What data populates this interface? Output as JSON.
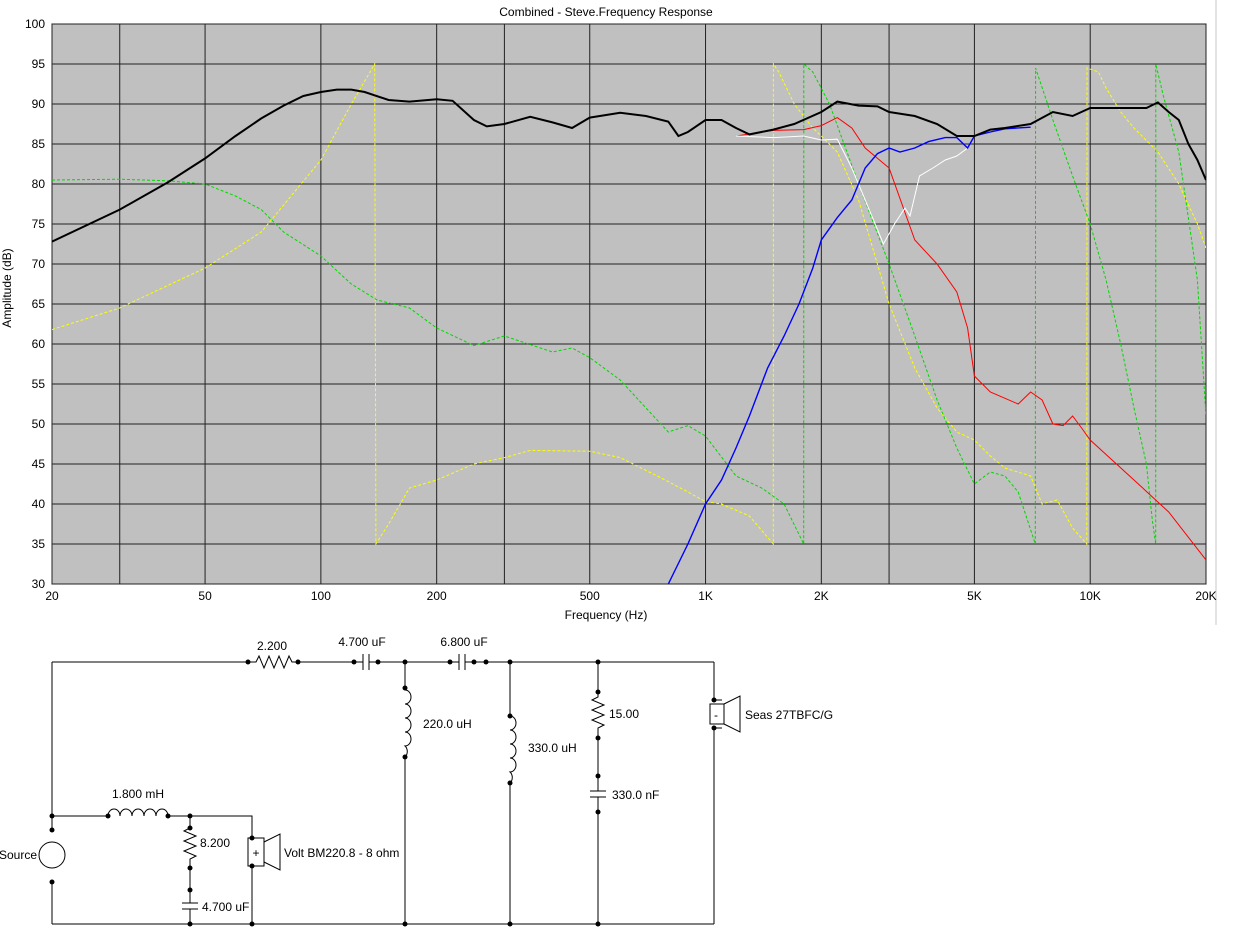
{
  "chart_data": {
    "type": "line",
    "title": "Combined - Steve.Frequency Response",
    "xlabel": "Frequency (Hz)",
    "ylabel": "Amplitude (dB)",
    "x_scale": "log",
    "xlim": [
      20,
      20000
    ],
    "ylim": [
      30,
      100
    ],
    "grid": true,
    "x_ticks": [
      {
        "v": 20,
        "label": "20"
      },
      {
        "v": 50,
        "label": "50"
      },
      {
        "v": 100,
        "label": "100"
      },
      {
        "v": 200,
        "label": "200"
      },
      {
        "v": 500,
        "label": "500"
      },
      {
        "v": 1000,
        "label": "1K"
      },
      {
        "v": 2000,
        "label": "2K"
      },
      {
        "v": 5000,
        "label": "5K"
      },
      {
        "v": 10000,
        "label": "10K"
      },
      {
        "v": 20000,
        "label": "20K"
      }
    ],
    "x_grid": [
      20,
      30,
      50,
      100,
      200,
      300,
      500,
      1000,
      2000,
      3000,
      5000,
      10000,
      20000
    ],
    "y_ticks": [
      {
        "v": 30,
        "label": "30"
      },
      {
        "v": 35,
        "label": "35"
      },
      {
        "v": 40,
        "label": "40"
      },
      {
        "v": 45,
        "label": "45"
      },
      {
        "v": 50,
        "label": "50"
      },
      {
        "v": 55,
        "label": "55"
      },
      {
        "v": 60,
        "label": "60"
      },
      {
        "v": 65,
        "label": "65"
      },
      {
        "v": 70,
        "label": "70"
      },
      {
        "v": 75,
        "label": "75"
      },
      {
        "v": 80,
        "label": "80"
      },
      {
        "v": 85,
        "label": "85"
      },
      {
        "v": 90,
        "label": "90"
      },
      {
        "v": 95,
        "label": "95"
      },
      {
        "v": 100,
        "label": "100"
      }
    ],
    "series": [
      {
        "color": "#ffff00",
        "style": "dashed",
        "width": 1,
        "points": [
          [
            20,
            61.8
          ],
          [
            30,
            64.5
          ],
          [
            50,
            69.5
          ],
          [
            70,
            74
          ],
          [
            100,
            83
          ],
          [
            120,
            90
          ],
          [
            138,
            95
          ],
          [
            139,
            35
          ],
          [
            150,
            37.5
          ],
          [
            170,
            42
          ],
          [
            200,
            43
          ],
          [
            250,
            45
          ],
          [
            300,
            45.8
          ],
          [
            350,
            46.7
          ],
          [
            500,
            46.6
          ],
          [
            600,
            45.8
          ],
          [
            700,
            44.2
          ],
          [
            800,
            42.8
          ],
          [
            900,
            41.5
          ],
          [
            1000,
            40.3
          ],
          [
            1100,
            40
          ],
          [
            1300,
            38.5
          ],
          [
            1500,
            35
          ],
          [
            1501,
            95
          ],
          [
            1550,
            94
          ],
          [
            1700,
            90
          ],
          [
            1900,
            87
          ],
          [
            2000,
            86
          ],
          [
            2200,
            84
          ],
          [
            2500,
            78
          ],
          [
            3000,
            65
          ],
          [
            3500,
            57
          ],
          [
            4000,
            52
          ],
          [
            4500,
            49
          ],
          [
            5000,
            48
          ],
          [
            5500,
            46
          ],
          [
            6000,
            44.5
          ],
          [
            7000,
            43.5
          ],
          [
            7500,
            40
          ],
          [
            8200,
            40.5
          ],
          [
            9000,
            37
          ],
          [
            9800,
            35
          ],
          [
            9810,
            94.5
          ],
          [
            10500,
            94
          ],
          [
            11000,
            92
          ],
          [
            12000,
            89
          ],
          [
            13000,
            87
          ],
          [
            15000,
            84
          ],
          [
            17000,
            80
          ],
          [
            19000,
            75
          ],
          [
            20000,
            72
          ]
        ]
      },
      {
        "color": "#00d800",
        "style": "dashed",
        "width": 1,
        "points": [
          [
            20,
            80.5
          ],
          [
            30,
            80.6
          ],
          [
            40,
            80.4
          ],
          [
            50,
            80
          ],
          [
            60,
            78.5
          ],
          [
            70,
            76.8
          ],
          [
            80,
            74
          ],
          [
            100,
            71
          ],
          [
            120,
            67.5
          ],
          [
            140,
            65.5
          ],
          [
            170,
            64.5
          ],
          [
            200,
            62
          ],
          [
            250,
            59.8
          ],
          [
            300,
            61
          ],
          [
            400,
            59
          ],
          [
            450,
            59.5
          ],
          [
            500,
            58.3
          ],
          [
            600,
            55.5
          ],
          [
            700,
            52
          ],
          [
            800,
            49
          ],
          [
            900,
            49.8
          ],
          [
            1000,
            48.5
          ],
          [
            1200,
            43.5
          ],
          [
            1400,
            42
          ],
          [
            1600,
            40
          ],
          [
            1800,
            35
          ],
          [
            1801,
            95
          ],
          [
            1900,
            94
          ],
          [
            2100,
            90
          ],
          [
            2500,
            80
          ],
          [
            3000,
            70
          ],
          [
            3500,
            61
          ],
          [
            4000,
            53
          ],
          [
            4500,
            47
          ],
          [
            5000,
            42.5
          ],
          [
            5500,
            44
          ],
          [
            6000,
            43.5
          ],
          [
            6500,
            41.5
          ],
          [
            7200,
            35
          ],
          [
            7210,
            94.5
          ],
          [
            8000,
            88
          ],
          [
            9000,
            81
          ],
          [
            10000,
            75
          ],
          [
            11000,
            68
          ],
          [
            12000,
            60
          ],
          [
            13000,
            52
          ],
          [
            14000,
            45
          ],
          [
            14500,
            38
          ],
          [
            14800,
            35
          ],
          [
            14810,
            95
          ],
          [
            15500,
            91
          ],
          [
            17000,
            84
          ],
          [
            19000,
            68
          ],
          [
            20000,
            51
          ]
        ]
      },
      {
        "color": "#ff0000",
        "style": "solid",
        "width": 1,
        "points": [
          [
            1200,
            86
          ],
          [
            1500,
            86.7
          ],
          [
            1800,
            86.8
          ],
          [
            2000,
            87.3
          ],
          [
            2200,
            88.3
          ],
          [
            2400,
            87
          ],
          [
            2600,
            84.5
          ],
          [
            3000,
            82
          ],
          [
            3500,
            73
          ],
          [
            4000,
            70
          ],
          [
            4500,
            66.5
          ],
          [
            4800,
            62
          ],
          [
            5000,
            56
          ],
          [
            5500,
            54
          ],
          [
            6500,
            52.5
          ],
          [
            7000,
            54
          ],
          [
            7500,
            53
          ],
          [
            8000,
            50
          ],
          [
            8500,
            49.8
          ],
          [
            9000,
            51
          ],
          [
            9500,
            49.5
          ],
          [
            10000,
            48
          ],
          [
            13000,
            43
          ],
          [
            16000,
            39
          ],
          [
            20000,
            33
          ]
        ]
      },
      {
        "color": "#ffffff",
        "style": "solid",
        "width": 1,
        "points": [
          [
            1200,
            86
          ],
          [
            1500,
            85.8
          ],
          [
            1800,
            86
          ],
          [
            2000,
            85.5
          ],
          [
            2200,
            85.6
          ],
          [
            2400,
            82
          ],
          [
            2600,
            78
          ],
          [
            2900,
            72.5
          ],
          [
            3100,
            75
          ],
          [
            3300,
            77
          ],
          [
            3400,
            76
          ],
          [
            3600,
            81
          ],
          [
            3900,
            82
          ],
          [
            4200,
            83
          ],
          [
            4500,
            83.5
          ],
          [
            4800,
            84.5
          ],
          [
            5000,
            86
          ]
        ]
      },
      {
        "color": "#0000ff",
        "style": "solid",
        "width": 1.4,
        "points": [
          [
            800,
            30
          ],
          [
            900,
            35
          ],
          [
            1000,
            40
          ],
          [
            1100,
            43
          ],
          [
            1200,
            47
          ],
          [
            1300,
            51
          ],
          [
            1450,
            57
          ],
          [
            1600,
            61
          ],
          [
            1750,
            65
          ],
          [
            1900,
            69.5
          ],
          [
            2000,
            73
          ],
          [
            2200,
            75.8
          ],
          [
            2400,
            78
          ],
          [
            2600,
            82
          ],
          [
            2800,
            83.8
          ],
          [
            3000,
            84.5
          ],
          [
            3200,
            84
          ],
          [
            3500,
            84.5
          ],
          [
            3800,
            85.3
          ],
          [
            4200,
            85.8
          ],
          [
            4500,
            85.8
          ],
          [
            4800,
            84.5
          ],
          [
            5000,
            86
          ],
          [
            5500,
            86.5
          ],
          [
            6000,
            86.9
          ],
          [
            7000,
            87.1
          ]
        ]
      },
      {
        "color": "#000000",
        "style": "solid",
        "width": 2,
        "points": [
          [
            20,
            72.8
          ],
          [
            30,
            76.8
          ],
          [
            40,
            80.2
          ],
          [
            50,
            83.2
          ],
          [
            60,
            86
          ],
          [
            70,
            88.2
          ],
          [
            80,
            89.8
          ],
          [
            90,
            91
          ],
          [
            100,
            91.5
          ],
          [
            110,
            91.8
          ],
          [
            120,
            91.8
          ],
          [
            130,
            91.5
          ],
          [
            150,
            90.5
          ],
          [
            170,
            90.3
          ],
          [
            200,
            90.6
          ],
          [
            220,
            90.4
          ],
          [
            250,
            88
          ],
          [
            270,
            87.2
          ],
          [
            300,
            87.5
          ],
          [
            350,
            88.4
          ],
          [
            400,
            87.7
          ],
          [
            450,
            87
          ],
          [
            500,
            88.3
          ],
          [
            600,
            88.9
          ],
          [
            700,
            88.5
          ],
          [
            800,
            87.8
          ],
          [
            850,
            86
          ],
          [
            900,
            86.5
          ],
          [
            1000,
            88
          ],
          [
            1100,
            88
          ],
          [
            1200,
            87
          ],
          [
            1300,
            86.2
          ],
          [
            1500,
            86.8
          ],
          [
            1700,
            87.5
          ],
          [
            2000,
            89
          ],
          [
            2200,
            90.3
          ],
          [
            2500,
            89.8
          ],
          [
            2800,
            89.7
          ],
          [
            3000,
            89
          ],
          [
            3500,
            88.5
          ],
          [
            4000,
            87.5
          ],
          [
            4500,
            86
          ],
          [
            5000,
            86
          ],
          [
            5500,
            86.8
          ],
          [
            6000,
            87
          ],
          [
            7000,
            87.5
          ],
          [
            8000,
            89
          ],
          [
            9000,
            88.5
          ],
          [
            10000,
            89.5
          ],
          [
            12000,
            89.5
          ],
          [
            14000,
            89.5
          ],
          [
            15000,
            90.2
          ],
          [
            16000,
            89
          ],
          [
            17000,
            88
          ],
          [
            18000,
            85
          ],
          [
            19000,
            83
          ],
          [
            20000,
            80.5
          ]
        ]
      }
    ]
  },
  "schematic": {
    "labels": {
      "r_series": "2.200",
      "c_series_1": "4.700 uF",
      "c_series_2": "6.800 uF",
      "l_shunt_1": "220.0 uH",
      "l_shunt_2": "330.0 uH",
      "r_zobel": "15.00",
      "c_zobel": "330.0 nF",
      "tweeter": "Seas 27TBFC/G",
      "l_woofer": "1.800 mH",
      "r_woofer": "8.200",
      "c_woofer": "4.700 uF",
      "woofer": "Volt BM220.8 - 8 ohm",
      "source": "Source",
      "minus": "-",
      "plus": "+"
    }
  }
}
